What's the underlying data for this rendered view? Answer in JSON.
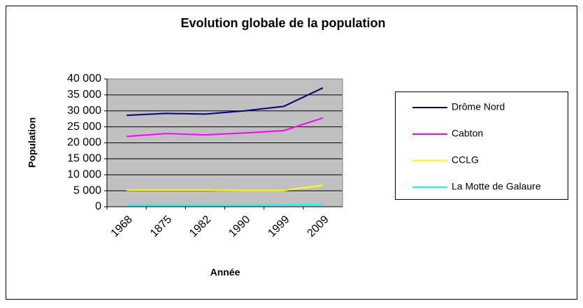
{
  "chart_data": {
    "type": "line",
    "title": "Evolution globale de la population",
    "x_label": "Année",
    "y_label": "Population",
    "categories": [
      "1968",
      "1875",
      "1982",
      "1990",
      "1999",
      "2009"
    ],
    "series": [
      {
        "name": "Drôme Nord",
        "color": "#000080",
        "values": [
          28600,
          29200,
          29000,
          30000,
          31400,
          37200
        ]
      },
      {
        "name": "Cabton",
        "color": "#ff00ff",
        "values": [
          22000,
          22900,
          22500,
          23100,
          23800,
          27800
        ]
      },
      {
        "name": "CCLG",
        "color": "#ffff00",
        "values": [
          5200,
          5200,
          5200,
          5100,
          5100,
          6700
        ]
      },
      {
        "name": "La Motte de Galaure",
        "color": "#00ffff",
        "values": [
          500,
          500,
          500,
          500,
          600,
          700
        ]
      }
    ],
    "ylim": [
      0,
      40000
    ],
    "yticks": [
      0,
      {
        "value": 5000,
        "label": "5 000"
      },
      {
        "value": 10000,
        "label": "10 000"
      },
      {
        "value": 15000,
        "label": "15 000"
      },
      {
        "value": 20000,
        "label": "20 000"
      },
      {
        "value": 25000,
        "label": "25 000"
      },
      {
        "value": 30000,
        "label": "30 000"
      },
      {
        "value": 35000,
        "label": "35 000"
      },
      {
        "value": 40000,
        "label": "40 000"
      }
    ],
    "grid": true,
    "legend": "right"
  }
}
